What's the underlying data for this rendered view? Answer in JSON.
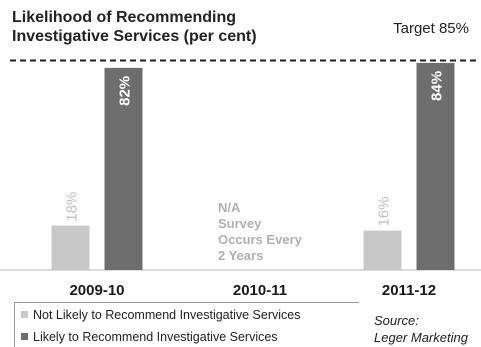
{
  "title_line1": "Likelihood of Recommending",
  "title_line2": "Investigative Services (per cent)",
  "target_label": "Target 85%",
  "na_note": [
    "N/A",
    "Survey",
    "Occurs Every",
    "2 Years"
  ],
  "source_line1": "Source:",
  "source_line2": "Leger Marketing",
  "chart_data": {
    "type": "bar",
    "title": "Likelihood of Recommending Investigative Services (per cent)",
    "categories": [
      "2009-10",
      "2010-11",
      "2011-12"
    ],
    "series": [
      {
        "name": "Not Likely to Recommend Investigative Services",
        "values": [
          18,
          null,
          16
        ],
        "labels": [
          "18%",
          "",
          "16%"
        ],
        "color": "#c8c8c8"
      },
      {
        "name": "Likely to Recommend Investigative Services",
        "values": [
          82,
          null,
          84
        ],
        "labels": [
          "82%",
          "",
          "84%"
        ],
        "color": "#6e6e6e"
      }
    ],
    "target": {
      "value": 85,
      "label": "Target 85%",
      "style": "dashed"
    },
    "ylim": [
      0,
      86
    ],
    "grid": false,
    "legend": "bottom-left"
  }
}
